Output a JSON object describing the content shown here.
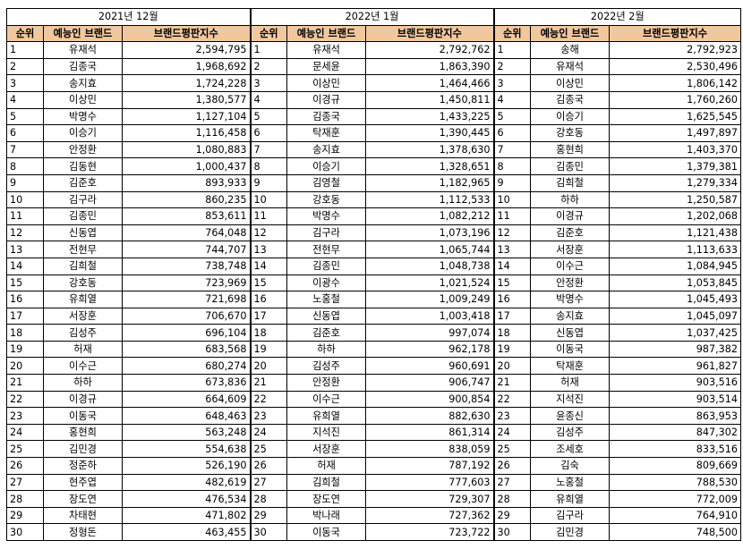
{
  "periods": [
    {
      "title": "2021년 12월",
      "headers": [
        "순위",
        "예능인 브랜드",
        "브랜드평판지수"
      ],
      "rows": [
        [
          "1",
          "유재석",
          "2,594,795"
        ],
        [
          "2",
          "김종국",
          "1,968,692"
        ],
        [
          "3",
          "송지효",
          "1,724,228"
        ],
        [
          "4",
          "이상민",
          "1,380,577"
        ],
        [
          "5",
          "박명수",
          "1,127,104"
        ],
        [
          "6",
          "이승기",
          "1,116,458"
        ],
        [
          "7",
          "안정환",
          "1,080,883"
        ],
        [
          "8",
          "김동현",
          "1,000,437"
        ],
        [
          "9",
          "김준호",
          "893,933"
        ],
        [
          "10",
          "김구라",
          "860,235"
        ],
        [
          "11",
          "김종민",
          "853,611"
        ],
        [
          "12",
          "신동엽",
          "764,048"
        ],
        [
          "13",
          "전현무",
          "744,707"
        ],
        [
          "14",
          "김희철",
          "738,748"
        ],
        [
          "15",
          "강호동",
          "723,969"
        ],
        [
          "16",
          "유희열",
          "721,698"
        ],
        [
          "17",
          "서장훈",
          "706,670"
        ],
        [
          "18",
          "김성주",
          "696,104"
        ],
        [
          "19",
          "허재",
          "683,568"
        ],
        [
          "20",
          "이수근",
          "680,274"
        ],
        [
          "21",
          "하하",
          "673,836"
        ],
        [
          "22",
          "이경규",
          "664,609"
        ],
        [
          "23",
          "이동국",
          "648,463"
        ],
        [
          "24",
          "홍현희",
          "563,248"
        ],
        [
          "25",
          "김민경",
          "554,638"
        ],
        [
          "26",
          "정준하",
          "526,190"
        ],
        [
          "27",
          "현주엽",
          "482,619"
        ],
        [
          "28",
          "장도연",
          "476,534"
        ],
        [
          "29",
          "차태현",
          "471,802"
        ],
        [
          "30",
          "정형돈",
          "463,455"
        ]
      ]
    },
    {
      "title": "2022년 1월",
      "headers": [
        "순위",
        "예능인 브랜드",
        "브랜드평판지수"
      ],
      "rows": [
        [
          "1",
          "유재석",
          "2,792,762"
        ],
        [
          "2",
          "문세윤",
          "1,863,390"
        ],
        [
          "3",
          "이상민",
          "1,464,466"
        ],
        [
          "4",
          "이경규",
          "1,450,811"
        ],
        [
          "5",
          "김종국",
          "1,433,225"
        ],
        [
          "6",
          "탁재훈",
          "1,390,445"
        ],
        [
          "7",
          "송지효",
          "1,378,630"
        ],
        [
          "8",
          "이승기",
          "1,328,651"
        ],
        [
          "9",
          "김영철",
          "1,182,965"
        ],
        [
          "10",
          "강호동",
          "1,112,533"
        ],
        [
          "11",
          "박명수",
          "1,082,212"
        ],
        [
          "12",
          "김구라",
          "1,073,196"
        ],
        [
          "13",
          "전현무",
          "1,065,744"
        ],
        [
          "14",
          "김종민",
          "1,048,738"
        ],
        [
          "15",
          "이광수",
          "1,021,524"
        ],
        [
          "16",
          "노홍철",
          "1,009,249"
        ],
        [
          "17",
          "신동엽",
          "1,003,418"
        ],
        [
          "18",
          "김준호",
          "997,074"
        ],
        [
          "19",
          "하하",
          "962,178"
        ],
        [
          "20",
          "김성주",
          "960,691"
        ],
        [
          "21",
          "안정환",
          "906,747"
        ],
        [
          "22",
          "이수근",
          "900,854"
        ],
        [
          "23",
          "유희열",
          "882,630"
        ],
        [
          "24",
          "지석진",
          "861,314"
        ],
        [
          "25",
          "서장훈",
          "838,059"
        ],
        [
          "26",
          "허재",
          "787,192"
        ],
        [
          "27",
          "김희철",
          "777,603"
        ],
        [
          "28",
          "장도연",
          "729,307"
        ],
        [
          "29",
          "박나래",
          "727,362"
        ],
        [
          "30",
          "이동국",
          "723,722"
        ]
      ]
    },
    {
      "title": "2022년 2월",
      "headers": [
        "순위",
        "예능인 브랜드",
        "브랜드평판지수"
      ],
      "rows": [
        [
          "1",
          "송해",
          "2,792,923"
        ],
        [
          "2",
          "유재석",
          "2,530,496"
        ],
        [
          "3",
          "이상민",
          "1,806,142"
        ],
        [
          "4",
          "김종국",
          "1,760,260"
        ],
        [
          "5",
          "이승기",
          "1,625,545"
        ],
        [
          "6",
          "강호동",
          "1,497,897"
        ],
        [
          "7",
          "홍현희",
          "1,403,370"
        ],
        [
          "8",
          "김종민",
          "1,379,381"
        ],
        [
          "9",
          "김희철",
          "1,279,334"
        ],
        [
          "10",
          "하하",
          "1,250,587"
        ],
        [
          "11",
          "이경규",
          "1,202,068"
        ],
        [
          "12",
          "김준호",
          "1,121,438"
        ],
        [
          "13",
          "서장훈",
          "1,113,633"
        ],
        [
          "14",
          "이수근",
          "1,084,945"
        ],
        [
          "15",
          "안정환",
          "1,053,845"
        ],
        [
          "16",
          "박명수",
          "1,045,493"
        ],
        [
          "17",
          "송지효",
          "1,045,097"
        ],
        [
          "18",
          "신동엽",
          "1,037,425"
        ],
        [
          "19",
          "이동국",
          "987,382"
        ],
        [
          "20",
          "탁재훈",
          "961,827"
        ],
        [
          "21",
          "허재",
          "903,516"
        ],
        [
          "22",
          "지석진",
          "903,514"
        ],
        [
          "23",
          "윤종신",
          "863,953"
        ],
        [
          "24",
          "김성주",
          "847,302"
        ],
        [
          "25",
          "조세호",
          "833,516"
        ],
        [
          "26",
          "김숙",
          "809,669"
        ],
        [
          "27",
          "노홍철",
          "788,530"
        ],
        [
          "28",
          "유희열",
          "772,009"
        ],
        [
          "29",
          "김구라",
          "764,910"
        ],
        [
          "30",
          "김민경",
          "748,500"
        ]
      ]
    }
  ]
}
